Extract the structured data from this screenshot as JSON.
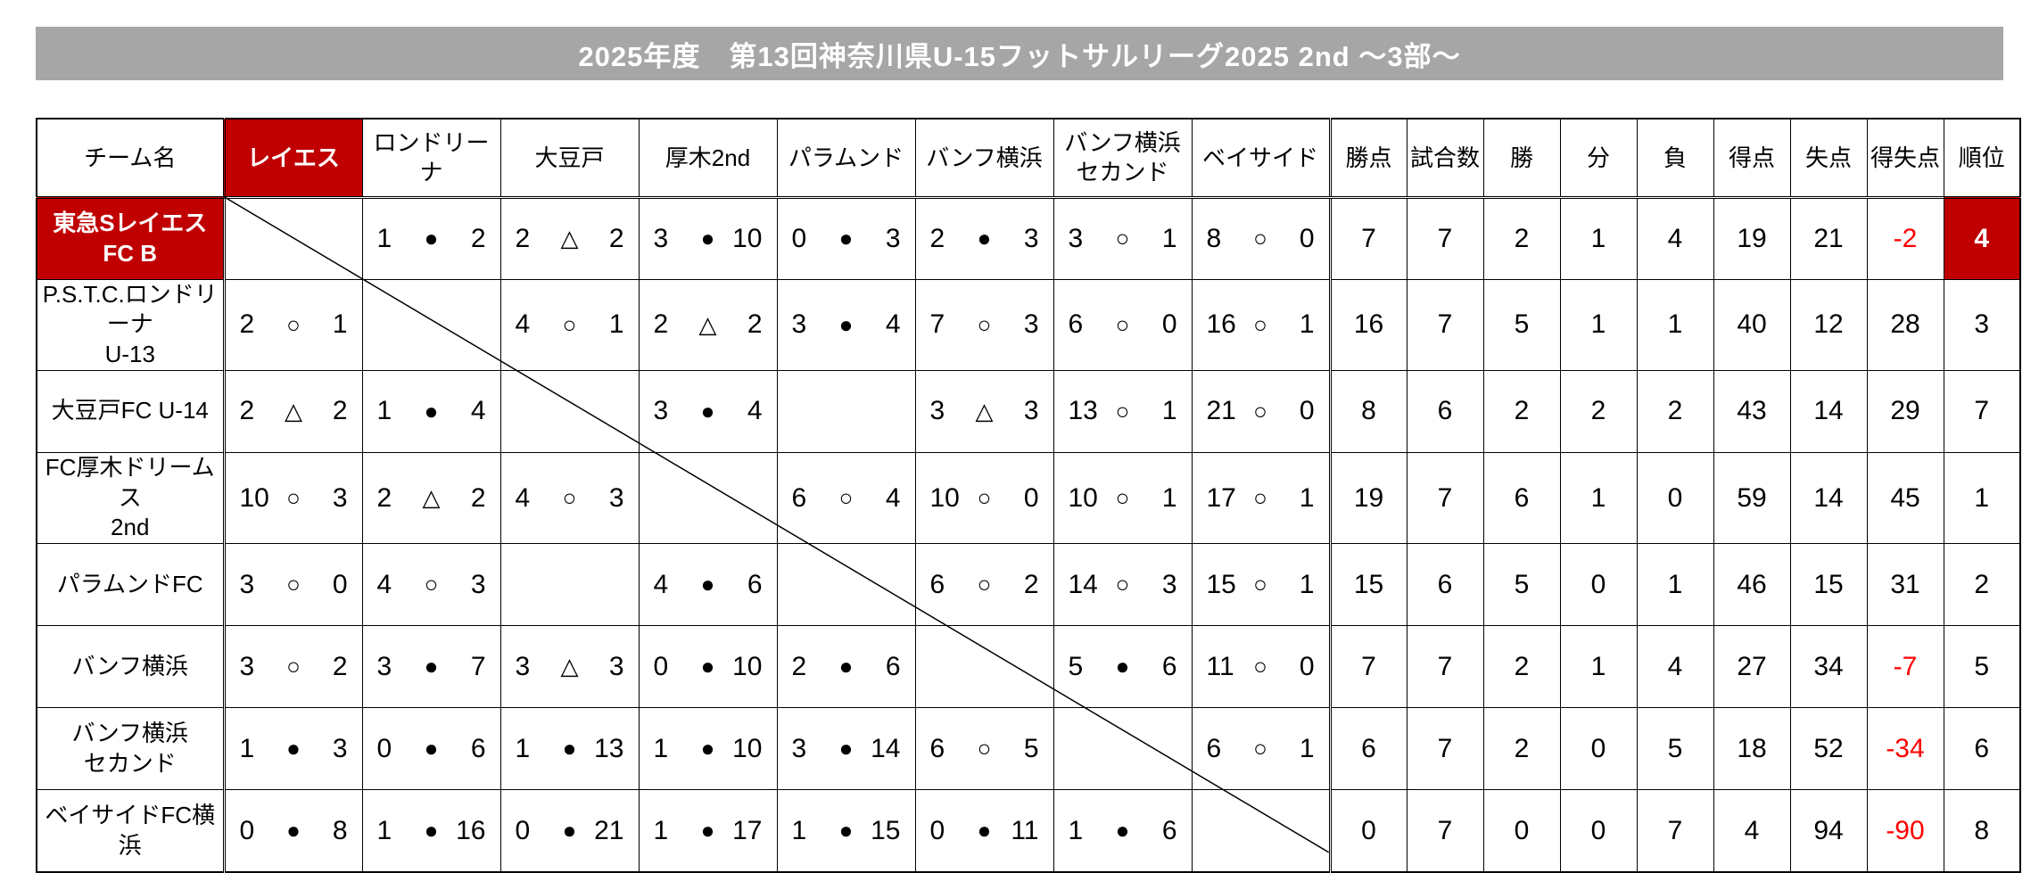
{
  "title": "2025年度　第13回神奈川県U-15フットサルリーグ2025 2nd ～3部～",
  "legend": {
    "win_symbol": "○",
    "draw_symbol": "△",
    "loss_symbol": "●"
  },
  "colors": {
    "highlight_red": "#c00000",
    "title_gray": "#a6a6a6",
    "negative_red": "#ff0000"
  },
  "table": {
    "team_col_header": "チーム名",
    "opponents": [
      {
        "label": "レイエス",
        "highlight": true
      },
      {
        "label": "ロンドリーナ",
        "highlight": false
      },
      {
        "label": "大豆戸",
        "highlight": false
      },
      {
        "label": "厚木2nd",
        "highlight": false
      },
      {
        "label": "パラムンド",
        "highlight": false
      },
      {
        "label": "バンフ横浜",
        "highlight": false
      },
      {
        "label": "バンフ横浜\nセカンド",
        "highlight": false
      },
      {
        "label": "ベイサイド",
        "highlight": false
      }
    ],
    "stat_headers": [
      "勝点",
      "試合数",
      "勝",
      "分",
      "負",
      "得点",
      "失点",
      "得失点",
      "順位"
    ],
    "rows": [
      {
        "team": "東急SレイエスFC B",
        "highlight": true,
        "results": [
          "self",
          [
            "1",
            "●",
            "2"
          ],
          [
            "2",
            "△",
            "2"
          ],
          [
            "3",
            "●",
            "10"
          ],
          [
            "0",
            "●",
            "3"
          ],
          [
            "2",
            "●",
            "3"
          ],
          [
            "3",
            "○",
            "1"
          ],
          [
            "8",
            "○",
            "0"
          ]
        ],
        "stats": [
          "7",
          "7",
          "2",
          "1",
          "4",
          "19",
          "21",
          "-2"
        ],
        "rank": "4"
      },
      {
        "team": "P.S.T.C.ロンドリーナ\nU-13",
        "highlight": false,
        "results": [
          [
            "2",
            "○",
            "1"
          ],
          "self",
          [
            "4",
            "○",
            "1"
          ],
          [
            "2",
            "△",
            "2"
          ],
          [
            "3",
            "●",
            "4"
          ],
          [
            "7",
            "○",
            "3"
          ],
          [
            "6",
            "○",
            "0"
          ],
          [
            "16",
            "○",
            "1"
          ]
        ],
        "stats": [
          "16",
          "7",
          "5",
          "1",
          "1",
          "40",
          "12",
          "28"
        ],
        "rank": "3"
      },
      {
        "team": "大豆戸FC U-14",
        "highlight": false,
        "results": [
          [
            "2",
            "△",
            "2"
          ],
          [
            "1",
            "●",
            "4"
          ],
          "self",
          [
            "3",
            "●",
            "4"
          ],
          null,
          [
            "3",
            "△",
            "3"
          ],
          [
            "13",
            "○",
            "1"
          ],
          [
            "21",
            "○",
            "0"
          ]
        ],
        "stats": [
          "8",
          "6",
          "2",
          "2",
          "2",
          "43",
          "14",
          "29"
        ],
        "rank": "7"
      },
      {
        "team": "FC厚木ドリームス\n2nd",
        "highlight": false,
        "results": [
          [
            "10",
            "○",
            "3"
          ],
          [
            "2",
            "△",
            "2"
          ],
          [
            "4",
            "○",
            "3"
          ],
          "self",
          [
            "6",
            "○",
            "4"
          ],
          [
            "10",
            "○",
            "0"
          ],
          [
            "10",
            "○",
            "1"
          ],
          [
            "17",
            "○",
            "1"
          ]
        ],
        "stats": [
          "19",
          "7",
          "6",
          "1",
          "0",
          "59",
          "14",
          "45"
        ],
        "rank": "1"
      },
      {
        "team": "パラムンドFC",
        "highlight": false,
        "results": [
          [
            "3",
            "○",
            "0"
          ],
          [
            "4",
            "○",
            "3"
          ],
          null,
          [
            "4",
            "●",
            "6"
          ],
          "self",
          [
            "6",
            "○",
            "2"
          ],
          [
            "14",
            "○",
            "3"
          ],
          [
            "15",
            "○",
            "1"
          ]
        ],
        "stats": [
          "15",
          "6",
          "5",
          "0",
          "1",
          "46",
          "15",
          "31"
        ],
        "rank": "2"
      },
      {
        "team": "バンフ横浜",
        "highlight": false,
        "results": [
          [
            "3",
            "○",
            "2"
          ],
          [
            "3",
            "●",
            "7"
          ],
          [
            "3",
            "△",
            "3"
          ],
          [
            "0",
            "●",
            "10"
          ],
          [
            "2",
            "●",
            "6"
          ],
          "self",
          [
            "5",
            "●",
            "6"
          ],
          [
            "11",
            "○",
            "0"
          ]
        ],
        "stats": [
          "7",
          "7",
          "2",
          "1",
          "4",
          "27",
          "34",
          "-7"
        ],
        "rank": "5"
      },
      {
        "team": "バンフ横浜\nセカンド",
        "highlight": false,
        "results": [
          [
            "1",
            "●",
            "3"
          ],
          [
            "0",
            "●",
            "6"
          ],
          [
            "1",
            "●",
            "13"
          ],
          [
            "1",
            "●",
            "10"
          ],
          [
            "3",
            "●",
            "14"
          ],
          [
            "6",
            "○",
            "5"
          ],
          "self",
          [
            "6",
            "○",
            "1"
          ]
        ],
        "stats": [
          "6",
          "7",
          "2",
          "0",
          "5",
          "18",
          "52",
          "-34"
        ],
        "rank": "6"
      },
      {
        "team": "ベイサイドFC横浜",
        "highlight": false,
        "results": [
          [
            "0",
            "●",
            "8"
          ],
          [
            "1",
            "●",
            "16"
          ],
          [
            "0",
            "●",
            "21"
          ],
          [
            "1",
            "●",
            "17"
          ],
          [
            "1",
            "●",
            "15"
          ],
          [
            "0",
            "●",
            "11"
          ],
          [
            "1",
            "●",
            "6"
          ],
          "self"
        ],
        "stats": [
          "0",
          "7",
          "0",
          "0",
          "7",
          "4",
          "94",
          "-90"
        ],
        "rank": "8"
      }
    ]
  }
}
